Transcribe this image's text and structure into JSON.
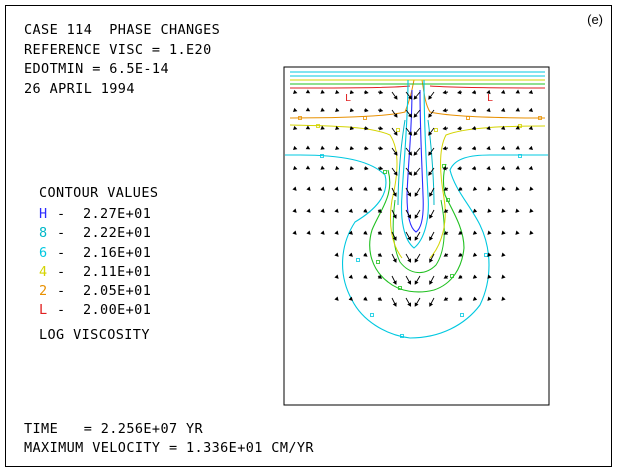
{
  "panel_label": "(e)",
  "header": {
    "line1": "CASE 114  PHASE CHANGES",
    "line2": "REFERENCE VISC = 1.E20",
    "line3": "EDOTMIN = 6.5E-14",
    "line4": "26 APRIL 1994"
  },
  "legend": {
    "title": "CONTOUR VALUES",
    "items": [
      {
        "symbol": "H",
        "value": "2.27E+01",
        "color": "#2b2bff"
      },
      {
        "symbol": "8",
        "value": "2.22E+01",
        "color": "#00b8c8"
      },
      {
        "symbol": "6",
        "value": "2.16E+01",
        "color": "#00c8e0"
      },
      {
        "symbol": "4",
        "value": "2.11E+01",
        "color": "#d4d400"
      },
      {
        "symbol": "2",
        "value": "2.05E+01",
        "color": "#e89000"
      },
      {
        "symbol": "L",
        "value": "2.00E+01",
        "color": "#e02020"
      }
    ],
    "dash": "-",
    "quantity": "LOG VISCOSITY"
  },
  "footer": {
    "time": "TIME   = 2.256E+07 YR",
    "velocity": "MAXIMUM VELOCITY = 1.336E+01 CM/YR"
  },
  "plot_labels": {
    "low_left": "L",
    "low_right": "L"
  },
  "colors": {
    "L": "#e02020",
    "2": "#e89000",
    "4": "#d4d400",
    "6": "#00c8e0",
    "8": "#00b8c8",
    "H": "#2b2bff",
    "green": "#20c020"
  }
}
